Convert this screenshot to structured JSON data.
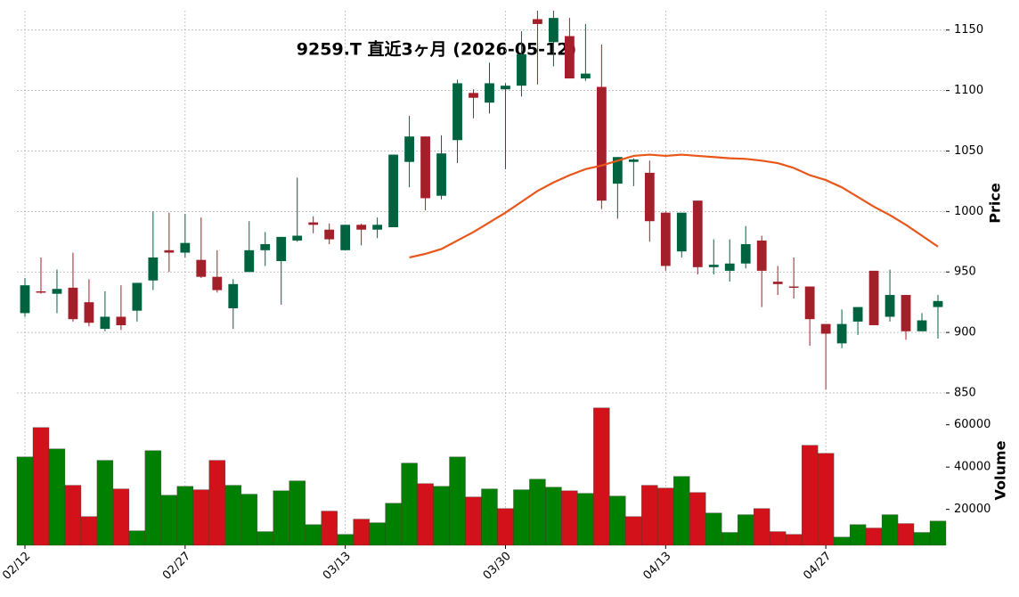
{
  "chart_data": {
    "type": "candlestick",
    "title": "9259.T 直近3ヶ月 (2026-05-12)",
    "categories": [
      "02/12",
      null,
      null,
      null,
      null,
      null,
      null,
      null,
      null,
      null,
      "02/27",
      null,
      null,
      null,
      null,
      null,
      null,
      null,
      null,
      null,
      "03/13",
      null,
      null,
      null,
      null,
      null,
      null,
      null,
      null,
      null,
      "03/30",
      null,
      null,
      null,
      null,
      null,
      null,
      null,
      null,
      null,
      "04/13",
      null,
      null,
      null,
      null,
      null,
      null,
      null,
      null,
      null,
      "04/27",
      null,
      null,
      null,
      null,
      null,
      null,
      null
    ],
    "open": [
      916,
      934,
      932,
      937,
      925,
      903,
      913,
      918,
      943,
      968,
      966,
      960,
      946,
      920,
      950,
      968,
      959,
      976,
      991,
      985,
      968,
      989,
      985,
      987,
      1041,
      1062,
      1013,
      1059,
      1098,
      1090,
      1101,
      1104,
      1159,
      1140,
      1145,
      1110,
      1103,
      1023,
      1041,
      1032,
      999,
      967,
      1009,
      954,
      951,
      957,
      976,
      942,
      938,
      938,
      907,
      891,
      909,
      951,
      913,
      931,
      901,
      921
    ],
    "high": [
      945,
      962,
      952,
      966,
      944,
      934,
      939,
      941,
      1000,
      999,
      998,
      995,
      968,
      944,
      992,
      983,
      979,
      1028,
      996,
      990,
      989,
      990,
      995,
      1047,
      1079,
      1062,
      1063,
      1109,
      1101,
      1123,
      1106,
      1149,
      1166,
      1166,
      1160,
      1155,
      1138,
      1045,
      1044,
      1042,
      1000,
      999,
      1009,
      977,
      977,
      988,
      980,
      955,
      962,
      938,
      907,
      919,
      921,
      951,
      952,
      931,
      916,
      931
    ],
    "low": [
      913,
      932,
      916,
      909,
      905,
      901,
      902,
      909,
      935,
      950,
      962,
      945,
      933,
      903,
      950,
      955,
      923,
      975,
      982,
      973,
      968,
      972,
      978,
      987,
      1020,
      1001,
      1010,
      1040,
      1077,
      1081,
      1035,
      1095,
      1105,
      1120,
      1110,
      1108,
      1002,
      994,
      1021,
      975,
      951,
      962,
      948,
      948,
      942,
      953,
      921,
      931,
      928,
      889,
      853,
      887,
      898,
      906,
      909,
      894,
      901,
      895
    ],
    "close": [
      939,
      933,
      936,
      911,
      908,
      913,
      906,
      941,
      962,
      966,
      974,
      946,
      935,
      940,
      968,
      973,
      979,
      980,
      989,
      977,
      989,
      985,
      989,
      1047,
      1062,
      1011,
      1048,
      1106,
      1094,
      1106,
      1104,
      1130,
      1155,
      1160,
      1110,
      1114,
      1009,
      1045,
      1043,
      992,
      955,
      999,
      954,
      956,
      957,
      973,
      951,
      940,
      937,
      911,
      899,
      907,
      921,
      906,
      931,
      901,
      910,
      926
    ],
    "up_color": "#006340",
    "down_color": "#a31f2a",
    "ylim": [
      850,
      1166
    ],
    "yticks": [
      850,
      900,
      950,
      1000,
      1050,
      1100,
      1150
    ],
    "ylabel": "Price",
    "grid": true,
    "moving_average": {
      "color": "#e8561a",
      "values": [
        null,
        null,
        null,
        null,
        null,
        null,
        null,
        null,
        null,
        null,
        null,
        null,
        null,
        null,
        null,
        null,
        null,
        null,
        null,
        null,
        null,
        null,
        null,
        null,
        962,
        965,
        969,
        976,
        983,
        991,
        999,
        1008,
        1017,
        1024,
        1030,
        1035,
        1038,
        1042,
        1046,
        1047,
        1046,
        1047,
        1046,
        1045,
        1044,
        1043.5,
        1042,
        1040,
        1036,
        1030,
        1026,
        1020,
        1012,
        1004,
        997,
        989,
        980,
        971
      ]
    },
    "volume": {
      "ylabel": "Volume",
      "ylim": [
        3000,
        70000
      ],
      "yticks": [
        20000,
        40000,
        60000
      ],
      "values": [
        44800,
        58700,
        48600,
        31400,
        16600,
        43200,
        29700,
        9900,
        47800,
        26700,
        30900,
        29300,
        43200,
        31400,
        27200,
        9500,
        28800,
        33500,
        12800,
        19200,
        8200,
        15400,
        13700,
        22900,
        41900,
        32200,
        30900,
        44800,
        25900,
        29700,
        20400,
        29300,
        34300,
        30500,
        28800,
        27600,
        68000,
        26300,
        16600,
        31400,
        30100,
        35600,
        28000,
        18300,
        9100,
        17500,
        20400,
        9500,
        8200,
        50300,
        46500,
        6900,
        12800,
        11200,
        17500,
        13300,
        9100,
        14500
      ],
      "colors": [
        "#008000",
        "#d3111a",
        "#008000",
        "#d3111a",
        "#d3111a",
        "#008000",
        "#d3111a",
        "#008000",
        "#008000",
        "#008000",
        "#008000",
        "#d3111a",
        "#d3111a",
        "#008000",
        "#008000",
        "#008000",
        "#008000",
        "#008000",
        "#008000",
        "#d3111a",
        "#008000",
        "#d3111a",
        "#008000",
        "#008000",
        "#008000",
        "#d3111a",
        "#008000",
        "#008000",
        "#d3111a",
        "#008000",
        "#d3111a",
        "#008000",
        "#008000",
        "#008000",
        "#d3111a",
        "#008000",
        "#d3111a",
        "#008000",
        "#d3111a",
        "#d3111a",
        "#d3111a",
        "#008000",
        "#d3111a",
        "#008000",
        "#008000",
        "#008000",
        "#d3111a",
        "#d3111a",
        "#d3111a",
        "#d3111a",
        "#d3111a",
        "#008000",
        "#008000",
        "#d3111a",
        "#008000",
        "#d3111a",
        "#008000",
        "#008000"
      ]
    }
  }
}
